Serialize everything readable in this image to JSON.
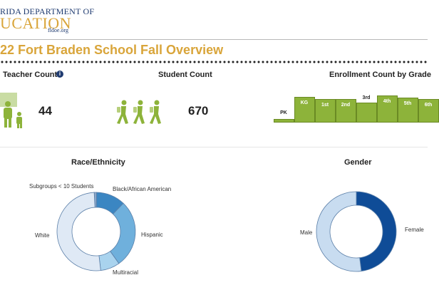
{
  "header": {
    "logo_line1": "RIDA DEPARTMENT OF",
    "logo_line2": "UCATION",
    "logo_line3": "fldoe.org",
    "page_title": "22 Fort Braden School Fall Overview"
  },
  "teacher": {
    "label": "Teacher Count",
    "value": "44",
    "info_glyph": "i"
  },
  "student": {
    "label": "Student Count",
    "value": "670"
  },
  "enrollment": {
    "label": "Enrollment Count by Grade",
    "chart_data": {
      "type": "bar",
      "categories": [
        "PK",
        "KG",
        "1st",
        "2nd",
        "3rd",
        "4th",
        "5th",
        "6th"
      ],
      "values": [
        5,
        36,
        33,
        33,
        28,
        38,
        35,
        33
      ],
      "ylim": [
        0,
        40
      ]
    }
  },
  "race": {
    "label": "Race/Ethnicity",
    "chart_data": {
      "type": "pie",
      "categories": [
        "Subgroups < 10 Students",
        "Black/African American",
        "Hispanic",
        "Multiracial",
        "White"
      ],
      "values": [
        1,
        12,
        28,
        8,
        51
      ],
      "colors": [
        "#8aa7c8",
        "#3b86c2",
        "#6fb0dc",
        "#a9d3ee",
        "#dfe9f5"
      ]
    }
  },
  "gender": {
    "label": "Gender",
    "chart_data": {
      "type": "pie",
      "categories": [
        "Female",
        "Male"
      ],
      "values": [
        48,
        52
      ],
      "colors": [
        "#0f4c97",
        "#c8dcf0"
      ]
    }
  },
  "colors": {
    "accent": "#d9a53a",
    "navy": "#1f3b70",
    "green": "#8db33a"
  },
  "icons": {
    "teacher": "teacher-students-icon",
    "student": "walking-students-icon"
  }
}
